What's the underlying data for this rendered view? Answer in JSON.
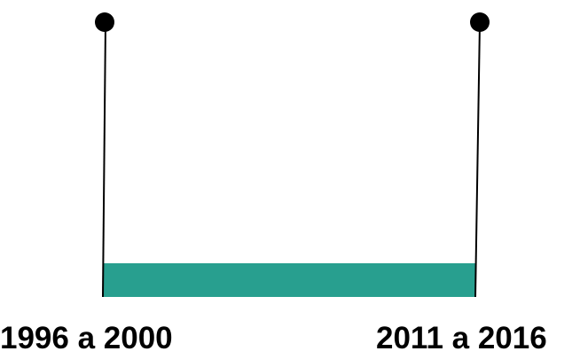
{
  "timeline": {
    "start_label": "1996 a 2000",
    "end_label": "2011 a 2016",
    "bar_color": "#289f8f",
    "line_color": "#000000",
    "marker_color": "#000000"
  }
}
